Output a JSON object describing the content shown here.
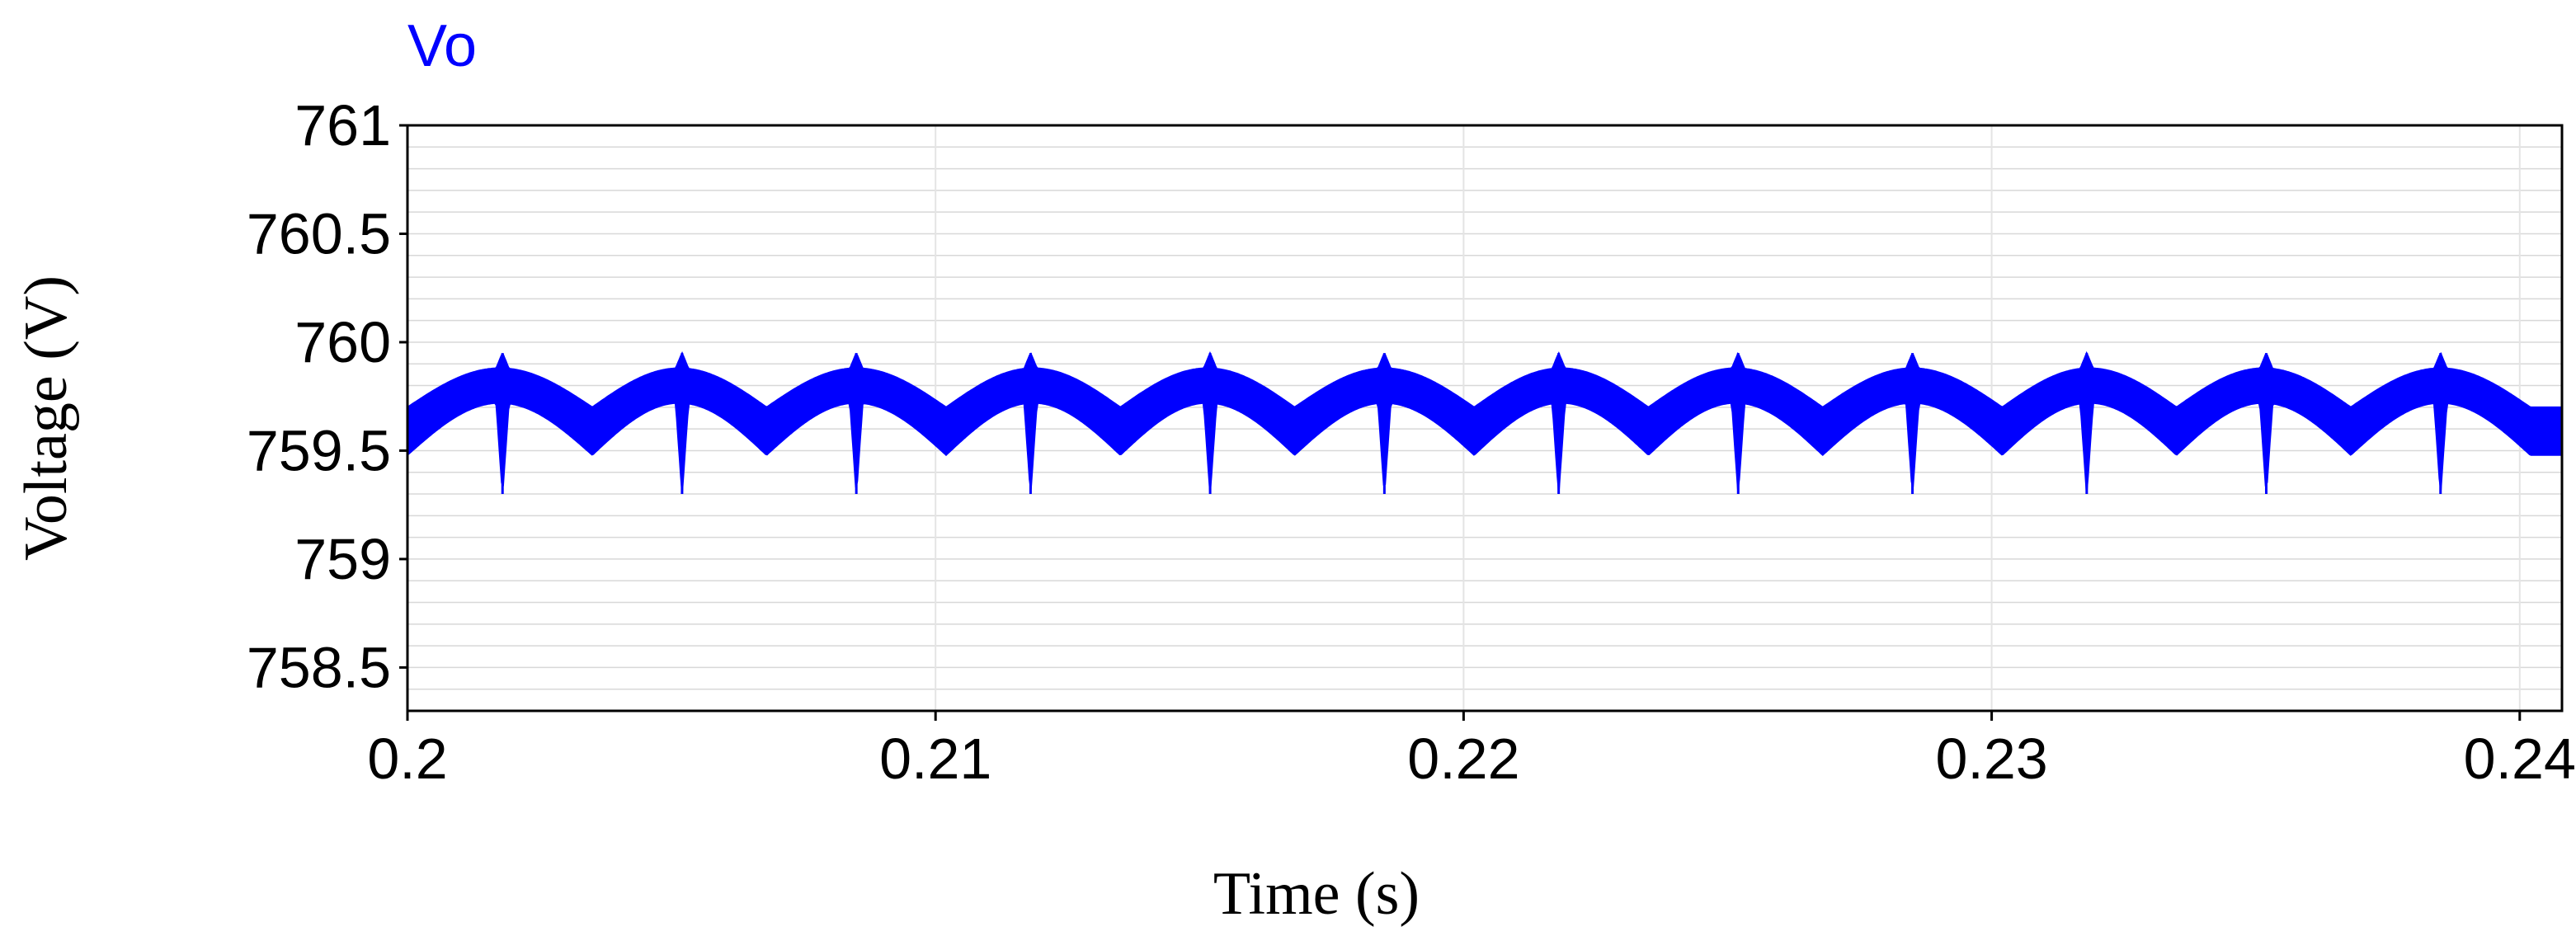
{
  "chart_data": {
    "type": "line",
    "series_label": "Vo",
    "xlabel": "Time (s)",
    "ylabel": "Voltage (V)",
    "xlim": [
      0.2,
      0.2408
    ],
    "ylim": [
      758.3,
      761.0
    ],
    "x_ticks": [
      0.2,
      0.21,
      0.22,
      0.23,
      0.24
    ],
    "x_tick_labels": [
      "0.2",
      "0.21",
      "0.22",
      "0.23",
      "0.24"
    ],
    "y_ticks": [
      761,
      760.5,
      760,
      759.5,
      759,
      758.5
    ],
    "y_tick_labels": [
      "761",
      "760.5",
      "760",
      "759.5",
      "759",
      "758.5"
    ],
    "grid": true,
    "series": [
      {
        "name": "Vo",
        "color": "#0000ff",
        "spike_times": [
          0.2018,
          0.2052,
          0.2085,
          0.2118,
          0.2152,
          0.2185,
          0.2218,
          0.2252,
          0.2285,
          0.2318,
          0.2352,
          0.2385
        ],
        "trough_times": [
          0.2,
          0.2035,
          0.2068,
          0.2102,
          0.2135,
          0.2168,
          0.2202,
          0.2235,
          0.2268,
          0.2302,
          0.2335,
          0.2368,
          0.2402
        ],
        "band_upper": {
          "peak": 759.88,
          "trough": 759.7,
          "spike_high": 759.95
        },
        "band_lower": {
          "peak": 759.72,
          "trough": 759.48,
          "spike_low": 759.3
        }
      }
    ]
  },
  "colors": {
    "series": "#0000ff",
    "axis": "#000000",
    "grid": "#d8d8d8",
    "background": "#ffffff"
  }
}
